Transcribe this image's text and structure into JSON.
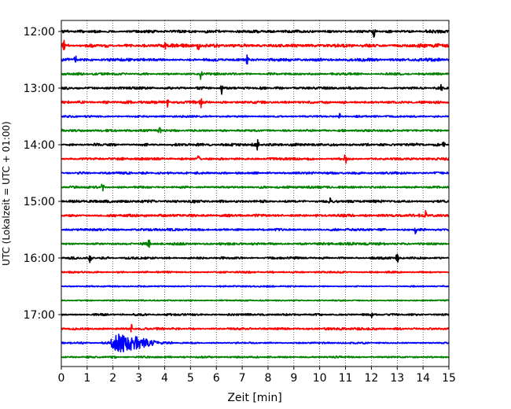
{
  "chart_data": {
    "type": "line",
    "title": "",
    "xlabel": "Zeit  [min]",
    "ylabel": "UTC (Lokalzeit = UTC + 01:00)",
    "xlim": [
      0,
      15
    ],
    "x_ticks": [
      0,
      1,
      2,
      3,
      4,
      5,
      6,
      7,
      8,
      9,
      10,
      11,
      12,
      13,
      14,
      15
    ],
    "x_tick_labels": [
      "0",
      "1",
      "2",
      "3",
      "4",
      "5",
      "6",
      "7",
      "8",
      "9",
      "10",
      "11",
      "12",
      "13",
      "14",
      "15"
    ],
    "y_tick_labels": [
      "12:00",
      "13:00",
      "14:00",
      "15:00",
      "16:00",
      "17:00"
    ],
    "y_tick_trace_index": [
      0,
      4,
      8,
      12,
      16,
      20
    ],
    "vertical_grid": true,
    "grid_style": "dotted",
    "trace_colors": [
      "#000000",
      "#ff0000",
      "#0000ff",
      "#008000"
    ],
    "traces": [
      {
        "start": "12:00",
        "amplitude": 0.6,
        "spikes": [
          12.1
        ]
      },
      {
        "start": "12:15",
        "amplitude": 0.7,
        "spikes": [
          0.1,
          4.0,
          5.3
        ]
      },
      {
        "start": "12:30",
        "amplitude": 0.6,
        "spikes": [
          0.55,
          7.2
        ]
      },
      {
        "start": "12:45",
        "amplitude": 0.5,
        "spikes": [
          5.4
        ]
      },
      {
        "start": "13:00",
        "amplitude": 0.55,
        "spikes": [
          6.2,
          14.7
        ]
      },
      {
        "start": "13:15",
        "amplitude": 0.6,
        "spikes": [
          4.1,
          5.4
        ]
      },
      {
        "start": "13:30",
        "amplitude": 0.4,
        "spikes": [
          10.8
        ]
      },
      {
        "start": "13:45",
        "amplitude": 0.5,
        "spikes": [
          3.8
        ]
      },
      {
        "start": "14:00",
        "amplitude": 0.6,
        "spikes": [
          7.6,
          14.8
        ]
      },
      {
        "start": "14:15",
        "amplitude": 0.55,
        "spikes": [
          5.3,
          11.0
        ]
      },
      {
        "start": "14:30",
        "amplitude": 0.5,
        "spikes": []
      },
      {
        "start": "14:45",
        "amplitude": 0.5,
        "spikes": [
          1.6
        ]
      },
      {
        "start": "15:00",
        "amplitude": 0.6,
        "spikes": [
          10.4
        ]
      },
      {
        "start": "15:15",
        "amplitude": 0.6,
        "spikes": [
          14.1
        ]
      },
      {
        "start": "15:30",
        "amplitude": 0.5,
        "spikes": [
          13.7
        ]
      },
      {
        "start": "15:45",
        "amplitude": 0.55,
        "spikes": [
          3.4
        ]
      },
      {
        "start": "16:00",
        "amplitude": 0.5,
        "spikes": [
          1.1,
          13.0
        ]
      },
      {
        "start": "16:15",
        "amplitude": 0.4,
        "spikes": []
      },
      {
        "start": "16:30",
        "amplitude": 0.3,
        "spikes": []
      },
      {
        "start": "16:45",
        "amplitude": 0.3,
        "spikes": []
      },
      {
        "start": "17:00",
        "amplitude": 0.45,
        "spikes": [
          12.0
        ]
      },
      {
        "start": "17:15",
        "amplitude": 0.5,
        "spikes": [
          2.7
        ]
      },
      {
        "start": "17:30",
        "amplitude": 0.4,
        "spikes": [],
        "event": {
          "start_min": 1.8,
          "end_min": 3.5,
          "amplitude": 1.8
        }
      },
      {
        "start": "17:45",
        "amplitude": 0.4,
        "spikes": []
      }
    ]
  }
}
